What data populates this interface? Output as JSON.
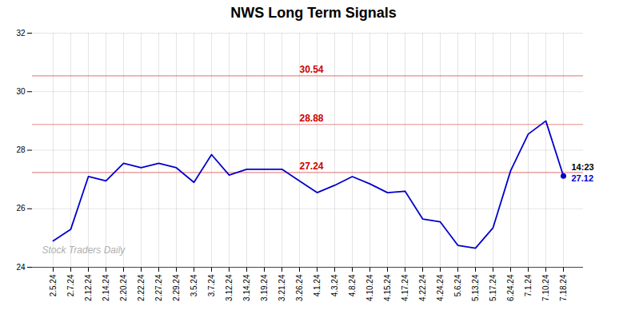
{
  "chart_data": {
    "type": "line",
    "title": "NWS Long Term Signals",
    "categories": [
      "2.5.24",
      "2.7.24",
      "2.12.24",
      "2.14.24",
      "2.20.24",
      "2.22.24",
      "2.27.24",
      "2.29.24",
      "3.5.24",
      "3.7.24",
      "3.12.24",
      "3.14.24",
      "3.19.24",
      "3.21.24",
      "3.26.24",
      "4.1.24",
      "4.3.24",
      "4.8.24",
      "4.10.24",
      "4.15.24",
      "4.17.24",
      "4.22.24",
      "4.24.24",
      "5.6.24",
      "5.13.24",
      "5.17.24",
      "6.24.24",
      "7.1.24",
      "7.10.24",
      "7.18.24"
    ],
    "values": [
      24.9,
      25.3,
      27.1,
      26.95,
      27.55,
      27.4,
      27.55,
      27.4,
      26.9,
      27.85,
      27.15,
      27.35,
      27.35,
      27.35,
      26.95,
      26.55,
      26.8,
      27.1,
      26.85,
      26.55,
      26.6,
      25.65,
      25.55,
      24.75,
      24.65,
      25.35,
      27.3,
      28.55,
      29.0,
      27.12
    ],
    "color": "#0000cc",
    "ylim": [
      24,
      32
    ],
    "yticks": [
      24,
      26,
      28,
      30,
      32
    ],
    "grid": true,
    "signal_levels": {
      "values": [
        30.54,
        28.88,
        27.24
      ],
      "color": "#cc0000"
    },
    "annotations": [
      "14:23",
      "27.12"
    ],
    "watermark": "Stock Traders Daily"
  }
}
